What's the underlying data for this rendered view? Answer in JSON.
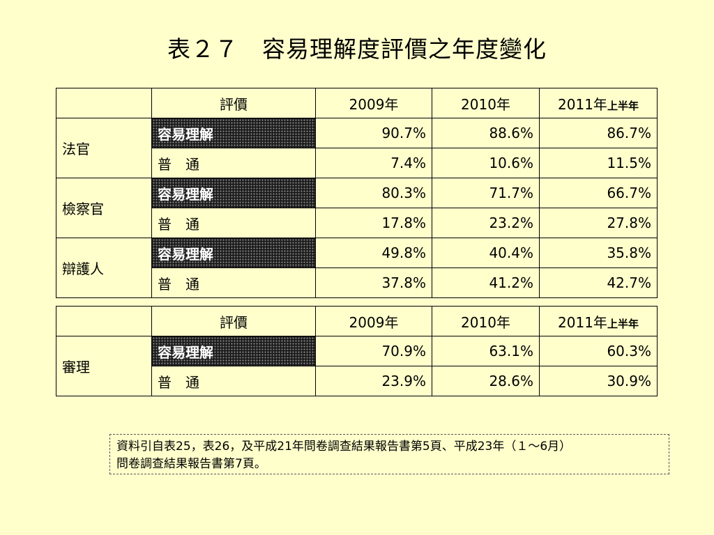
{
  "title": "表２７　容易理解度評價之年度變化",
  "header": {
    "rating_col": "評價",
    "y2009": "2009年",
    "y2010": "2010年",
    "y2011": "2011年",
    "y2011_suffix": "上半年"
  },
  "rating_labels": {
    "easy": "容易理解",
    "normal": "普　通"
  },
  "table1": {
    "groups": [
      {
        "name": "法官",
        "easy": [
          "90.7%",
          "88.6%",
          "86.7%"
        ],
        "normal": [
          "7.4%",
          "10.6%",
          "11.5%"
        ]
      },
      {
        "name": "檢察官",
        "easy": [
          "80.3%",
          "71.7%",
          "66.7%"
        ],
        "normal": [
          "17.8%",
          "23.2%",
          "27.8%"
        ]
      },
      {
        "name": "辯護人",
        "easy": [
          "49.8%",
          "40.4%",
          "35.8%"
        ],
        "normal": [
          "37.8%",
          "41.2%",
          "42.7%"
        ]
      }
    ]
  },
  "table2": {
    "groups": [
      {
        "name": "審理",
        "easy": [
          "70.9%",
          "63.1%",
          "60.3%"
        ],
        "normal": [
          "23.9%",
          "28.6%",
          "30.9%"
        ]
      }
    ]
  },
  "note": {
    "line1": "資料引自表25，表26，及平成21年問卷調查結果報告書第5頁、平成23年（１～6月）",
    "line2": "問卷調查結果報告書第7頁。"
  }
}
